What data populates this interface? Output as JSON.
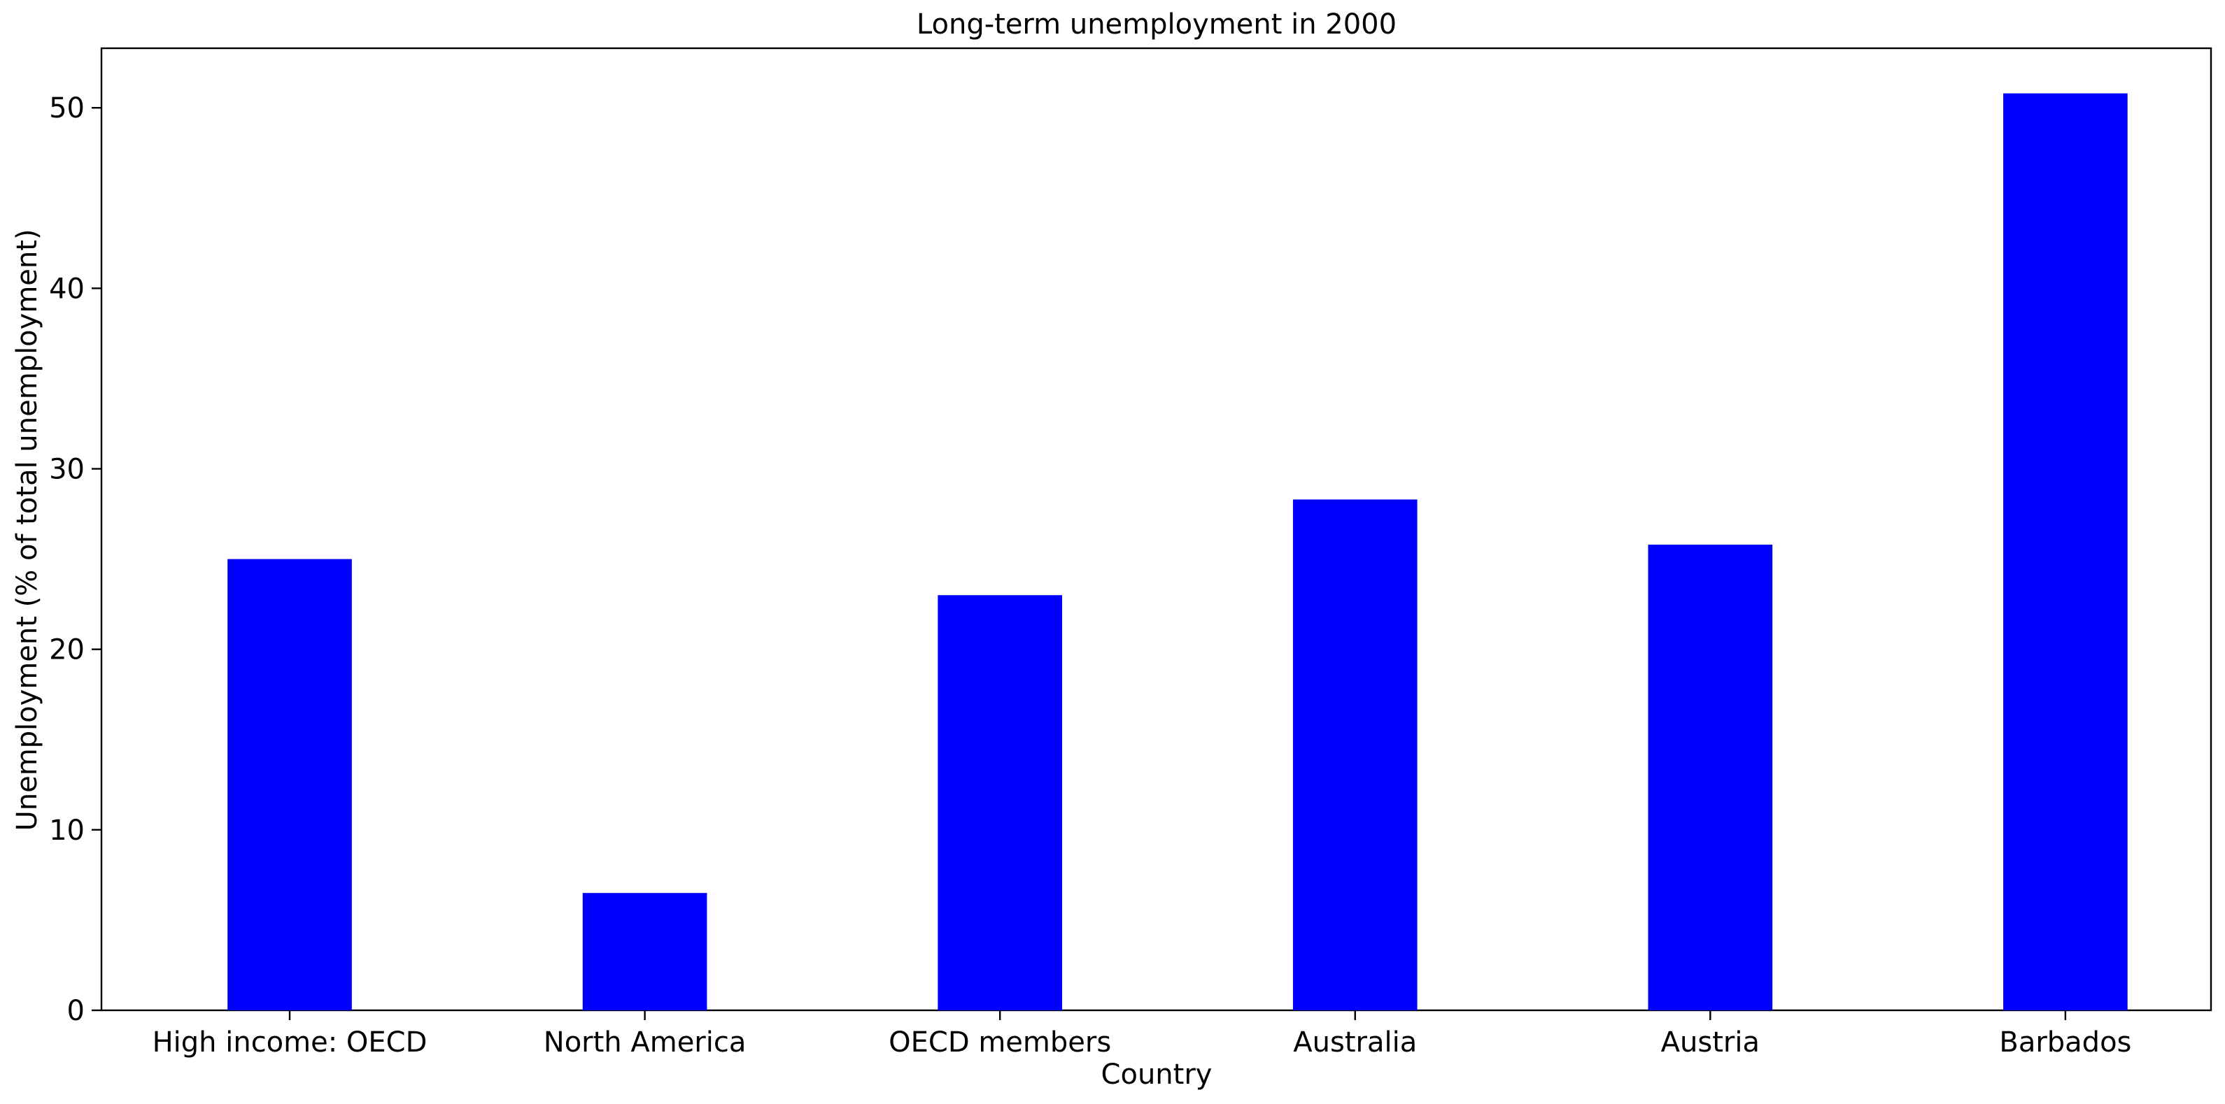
{
  "chart_data": {
    "type": "bar",
    "title": "Long-term unemployment in 2000",
    "xlabel": "Country",
    "ylabel": "Unemployment (% of total unemployment)",
    "categories": [
      "High income: OECD",
      "North America",
      "OECD members",
      "Australia",
      "Austria",
      "Barbados"
    ],
    "values": [
      25.0,
      6.5,
      23.0,
      28.3,
      25.8,
      50.8
    ],
    "ylim": [
      0,
      53.3
    ],
    "yticks": [
      0,
      10,
      20,
      30,
      40,
      50
    ],
    "grid": false,
    "bar_color": "#0000ff"
  }
}
